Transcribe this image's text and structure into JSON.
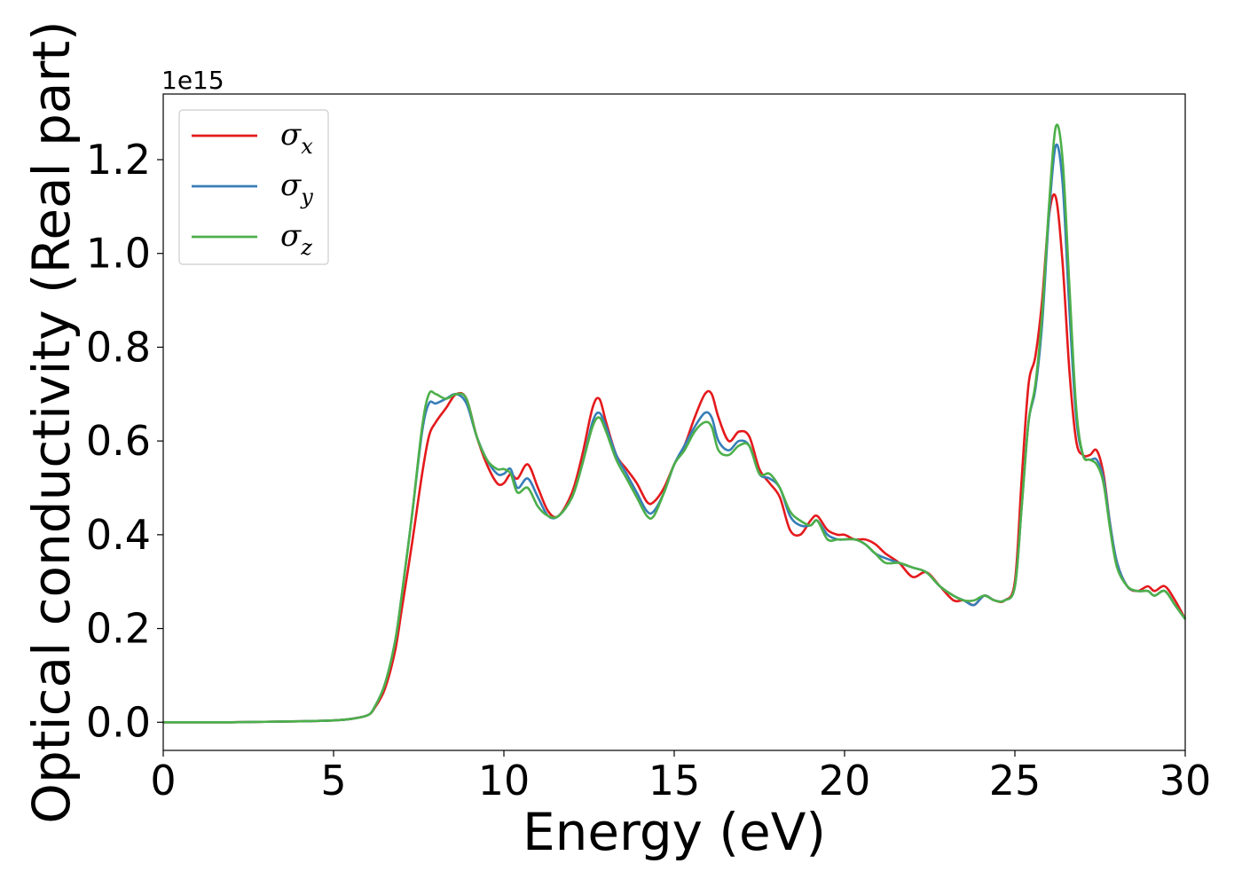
{
  "chart_data": {
    "type": "line",
    "xlabel": "Energy (eV)",
    "ylabel": "Optical conductivity (Real part)",
    "y_offset_label": "1e15",
    "xlim": [
      0,
      30
    ],
    "ylim": [
      -0.06,
      1.34
    ],
    "x_ticks": [
      0,
      5,
      10,
      15,
      20,
      25,
      30
    ],
    "x_tick_labels": [
      "0",
      "5",
      "10",
      "15",
      "20",
      "25",
      "30"
    ],
    "y_ticks": [
      0.0,
      0.2,
      0.4,
      0.6,
      0.8,
      1.0,
      1.2
    ],
    "y_tick_labels": [
      "0.0",
      "0.2",
      "0.4",
      "0.6",
      "0.8",
      "1.0",
      "1.2"
    ],
    "grid": false,
    "legend_position": "top-left",
    "x": [
      0,
      1,
      2,
      3,
      4,
      5,
      5.5,
      6,
      6.2,
      6.5,
      6.8,
      7,
      7.3,
      7.6,
      7.8,
      8,
      8.3,
      8.6,
      8.9,
      9.2,
      9.5,
      9.8,
      10,
      10.2,
      10.4,
      10.7,
      11,
      11.3,
      11.6,
      12,
      12.3,
      12.6,
      12.8,
      13,
      13.3,
      13.6,
      13.9,
      14.2,
      14.4,
      14.7,
      15,
      15.3,
      15.6,
      15.9,
      16.1,
      16.3,
      16.6,
      16.9,
      17.2,
      17.5,
      17.8,
      18.1,
      18.4,
      18.7,
      19,
      19.2,
      19.5,
      19.8,
      20,
      20.3,
      20.6,
      20.9,
      21.2,
      21.6,
      22,
      22.4,
      22.8,
      23.2,
      23.5,
      23.8,
      24.1,
      24.4,
      24.7,
      25,
      25.2,
      25.4,
      25.6,
      25.8,
      26,
      26.2,
      26.4,
      26.6,
      26.8,
      27,
      27.2,
      27.4,
      27.6,
      27.8,
      28,
      28.3,
      28.6,
      28.9,
      29.1,
      29.4,
      29.7,
      30
    ],
    "series": [
      {
        "name": "σx",
        "label_base": "σ",
        "label_sub": "x",
        "color": "#e41a1c",
        "values": [
          0,
          0,
          0,
          0.001,
          0.002,
          0.004,
          0.007,
          0.015,
          0.03,
          0.07,
          0.15,
          0.24,
          0.38,
          0.53,
          0.61,
          0.64,
          0.67,
          0.7,
          0.69,
          0.61,
          0.55,
          0.51,
          0.51,
          0.53,
          0.52,
          0.55,
          0.5,
          0.45,
          0.44,
          0.49,
          0.57,
          0.67,
          0.69,
          0.64,
          0.57,
          0.54,
          0.51,
          0.47,
          0.47,
          0.5,
          0.55,
          0.59,
          0.65,
          0.7,
          0.7,
          0.65,
          0.6,
          0.62,
          0.61,
          0.54,
          0.51,
          0.48,
          0.41,
          0.4,
          0.43,
          0.44,
          0.41,
          0.4,
          0.4,
          0.39,
          0.39,
          0.38,
          0.36,
          0.34,
          0.31,
          0.32,
          0.29,
          0.26,
          0.26,
          0.25,
          0.27,
          0.26,
          0.26,
          0.3,
          0.52,
          0.72,
          0.78,
          0.9,
          1.08,
          1.12,
          0.98,
          0.75,
          0.6,
          0.57,
          0.57,
          0.58,
          0.53,
          0.42,
          0.34,
          0.29,
          0.28,
          0.29,
          0.28,
          0.29,
          0.26,
          0.22
        ]
      },
      {
        "name": "σy",
        "label_base": "σ",
        "label_sub": "y",
        "color": "#377eb8",
        "values": [
          0,
          0,
          0,
          0.001,
          0.002,
          0.004,
          0.007,
          0.015,
          0.032,
          0.08,
          0.17,
          0.27,
          0.44,
          0.62,
          0.68,
          0.68,
          0.69,
          0.7,
          0.68,
          0.61,
          0.56,
          0.53,
          0.53,
          0.54,
          0.5,
          0.52,
          0.48,
          0.44,
          0.44,
          0.48,
          0.55,
          0.64,
          0.66,
          0.63,
          0.57,
          0.53,
          0.49,
          0.45,
          0.45,
          0.49,
          0.55,
          0.59,
          0.63,
          0.66,
          0.65,
          0.6,
          0.58,
          0.6,
          0.59,
          0.53,
          0.52,
          0.5,
          0.44,
          0.42,
          0.42,
          0.43,
          0.4,
          0.39,
          0.39,
          0.39,
          0.38,
          0.36,
          0.35,
          0.34,
          0.33,
          0.32,
          0.29,
          0.27,
          0.26,
          0.25,
          0.27,
          0.26,
          0.26,
          0.29,
          0.46,
          0.64,
          0.71,
          0.85,
          1.08,
          1.23,
          1.15,
          0.88,
          0.65,
          0.57,
          0.56,
          0.56,
          0.52,
          0.42,
          0.34,
          0.29,
          0.28,
          0.28,
          0.27,
          0.28,
          0.25,
          0.22
        ]
      },
      {
        "name": "σz",
        "label_base": "σ",
        "label_sub": "z",
        "color": "#4daf4a",
        "values": [
          0,
          0,
          0,
          0.001,
          0.002,
          0.004,
          0.007,
          0.015,
          0.032,
          0.08,
          0.17,
          0.27,
          0.44,
          0.63,
          0.7,
          0.7,
          0.69,
          0.7,
          0.69,
          0.61,
          0.56,
          0.54,
          0.54,
          0.53,
          0.49,
          0.5,
          0.46,
          0.44,
          0.44,
          0.48,
          0.55,
          0.63,
          0.65,
          0.62,
          0.56,
          0.52,
          0.48,
          0.44,
          0.44,
          0.49,
          0.55,
          0.58,
          0.62,
          0.64,
          0.63,
          0.58,
          0.57,
          0.59,
          0.59,
          0.53,
          0.53,
          0.5,
          0.45,
          0.43,
          0.42,
          0.43,
          0.39,
          0.39,
          0.39,
          0.39,
          0.38,
          0.36,
          0.34,
          0.34,
          0.33,
          0.32,
          0.29,
          0.27,
          0.26,
          0.26,
          0.27,
          0.26,
          0.26,
          0.29,
          0.46,
          0.64,
          0.72,
          0.87,
          1.1,
          1.27,
          1.2,
          0.93,
          0.67,
          0.57,
          0.56,
          0.55,
          0.51,
          0.41,
          0.33,
          0.29,
          0.28,
          0.28,
          0.27,
          0.28,
          0.25,
          0.22
        ]
      }
    ]
  }
}
